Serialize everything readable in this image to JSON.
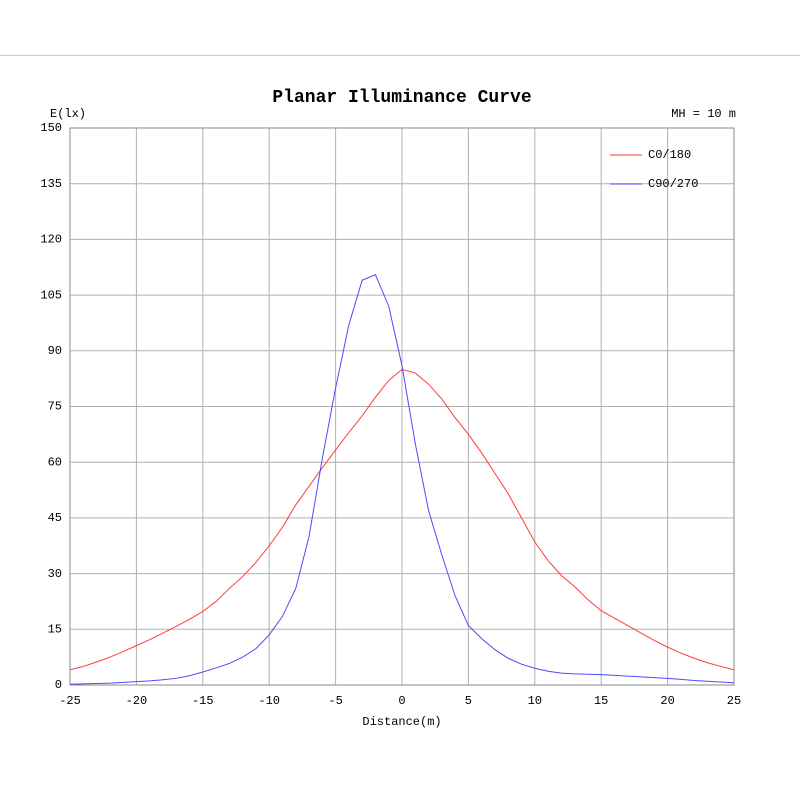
{
  "chart_data": {
    "type": "line",
    "title": "Planar Illuminance Curve",
    "y_label": "E(lx)",
    "x_label": "Distance(m)",
    "annotation": "MH = 10 m",
    "x": [
      -25,
      -24,
      -23,
      -22,
      -21,
      -20,
      -19,
      -18,
      -17,
      -16,
      -15,
      -14,
      -13,
      -12,
      -11,
      -10,
      -9,
      -8,
      -7,
      -6,
      -5,
      -4,
      -3,
      -2,
      -1,
      0,
      1,
      2,
      3,
      4,
      5,
      6,
      7,
      8,
      9,
      10,
      11,
      12,
      13,
      14,
      15,
      16,
      17,
      18,
      19,
      20,
      21,
      22,
      23,
      24,
      25
    ],
    "series": [
      {
        "name": "C0/180",
        "color": "#ff3b3b",
        "values": [
          4.1,
          5,
          6.2,
          7.5,
          9,
          10.6,
          12.2,
          14,
          15.8,
          17.7,
          19.8,
          22.5,
          26,
          29.2,
          33,
          37.5,
          42.5,
          48.5,
          53.5,
          58.5,
          63.3,
          68,
          72.5,
          77.5,
          82,
          85,
          84,
          81,
          77,
          72,
          67.5,
          62.5,
          57,
          51.5,
          45,
          38.5,
          33.5,
          29.5,
          26.5,
          23,
          20,
          18,
          16,
          14,
          12,
          10.2,
          8.6,
          7.2,
          6,
          5,
          4.1
        ]
      },
      {
        "name": "C90/270",
        "color": "#4b4bff",
        "values": [
          0.2,
          0.3,
          0.4,
          0.5,
          0.7,
          0.9,
          1.1,
          1.4,
          1.8,
          2.5,
          3.5,
          4.6,
          5.8,
          7.5,
          9.8,
          13.5,
          18.5,
          26,
          40,
          61,
          80,
          97,
          109,
          110.5,
          102,
          86,
          65,
          47,
          35,
          24,
          16,
          12.5,
          9.5,
          7.2,
          5.6,
          4.5,
          3.7,
          3.2,
          3,
          2.9,
          2.8,
          2.6,
          2.4,
          2.2,
          2,
          1.8,
          1.5,
          1.2,
          1,
          0.8,
          0.6
        ]
      }
    ],
    "xlim": [
      -25,
      25
    ],
    "xticks": [
      -25,
      -20,
      -15,
      -10,
      -5,
      0,
      5,
      10,
      15,
      20,
      25
    ],
    "ylim": [
      0,
      150
    ],
    "yticks": [
      0,
      15,
      30,
      45,
      60,
      75,
      90,
      105,
      120,
      135,
      150
    ],
    "grid": true,
    "legend": "upper right"
  }
}
